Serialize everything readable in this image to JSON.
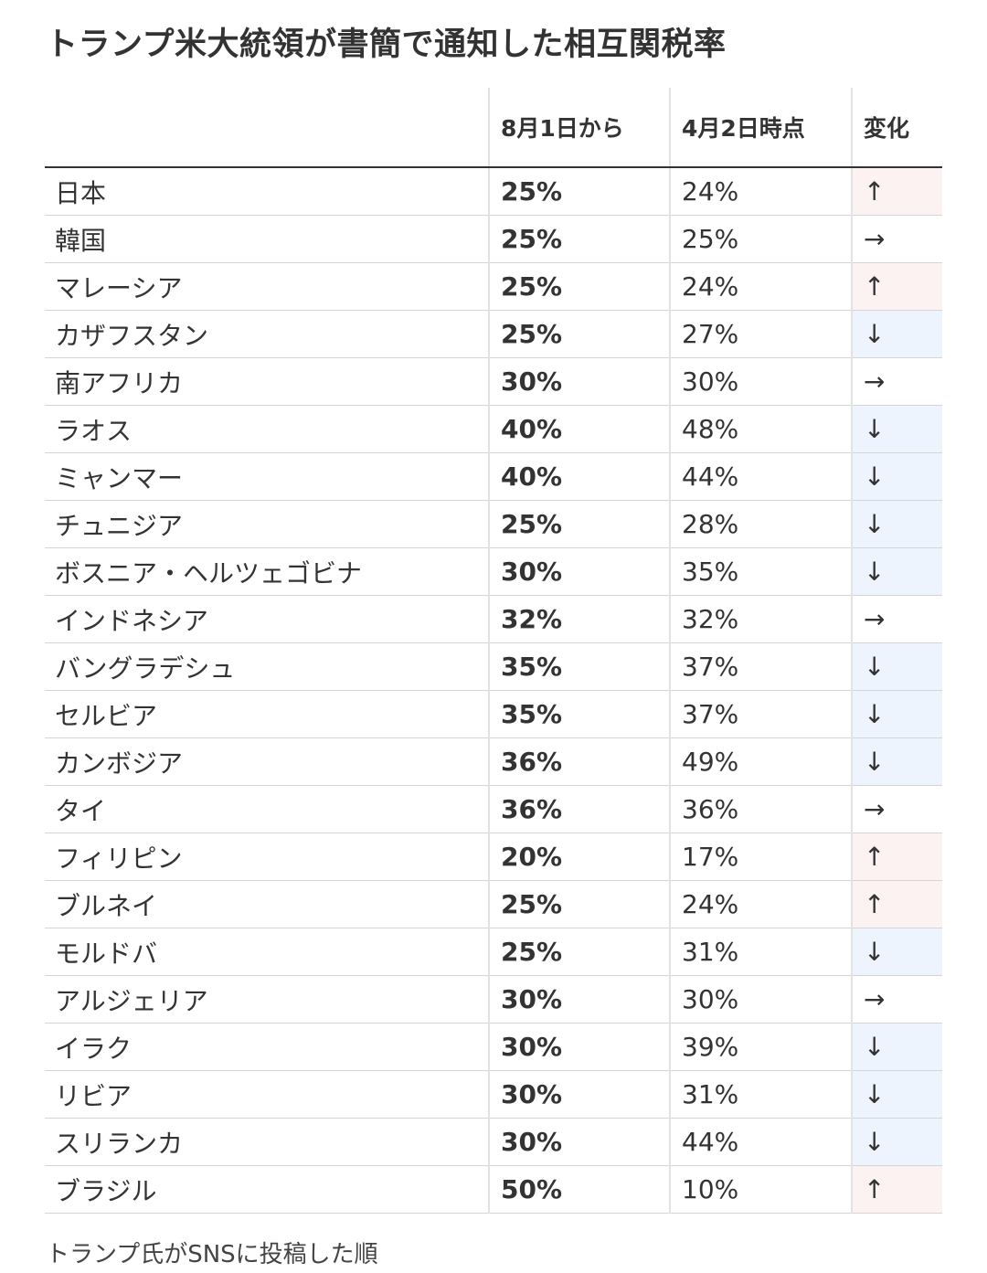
{
  "title": "トランプ米大統領が書簡で通知した相互関税率",
  "note": "トランプ氏がSNSに投稿した順",
  "chart_data": {
    "type": "table",
    "title": "トランプ米大統領が書簡で通知した相互関税率",
    "columns": [
      "",
      "8月1日から",
      "4月2日時点",
      "変化"
    ],
    "rows": [
      {
        "country": "日本",
        "new": "25%",
        "old": "24%",
        "change": "↑",
        "dir": "up"
      },
      {
        "country": "韓国",
        "new": "25%",
        "old": "25%",
        "change": "→",
        "dir": "same"
      },
      {
        "country": "マレーシア",
        "new": "25%",
        "old": "24%",
        "change": "↑",
        "dir": "up"
      },
      {
        "country": "カザフスタン",
        "new": "25%",
        "old": "27%",
        "change": "↓",
        "dir": "down"
      },
      {
        "country": "南アフリカ",
        "new": "30%",
        "old": "30%",
        "change": "→",
        "dir": "same"
      },
      {
        "country": "ラオス",
        "new": "40%",
        "old": "48%",
        "change": "↓",
        "dir": "down"
      },
      {
        "country": "ミャンマー",
        "new": "40%",
        "old": "44%",
        "change": "↓",
        "dir": "down"
      },
      {
        "country": "チュニジア",
        "new": "25%",
        "old": "28%",
        "change": "↓",
        "dir": "down"
      },
      {
        "country": "ボスニア・ヘルツェゴビナ",
        "new": "30%",
        "old": "35%",
        "change": "↓",
        "dir": "down"
      },
      {
        "country": "インドネシア",
        "new": "32%",
        "old": "32%",
        "change": "→",
        "dir": "same"
      },
      {
        "country": "バングラデシュ",
        "new": "35%",
        "old": "37%",
        "change": "↓",
        "dir": "down"
      },
      {
        "country": "セルビア",
        "new": "35%",
        "old": "37%",
        "change": "↓",
        "dir": "down"
      },
      {
        "country": "カンボジア",
        "new": "36%",
        "old": "49%",
        "change": "↓",
        "dir": "down"
      },
      {
        "country": "タイ",
        "new": "36%",
        "old": "36%",
        "change": "→",
        "dir": "same"
      },
      {
        "country": "フィリピン",
        "new": "20%",
        "old": "17%",
        "change": "↑",
        "dir": "up"
      },
      {
        "country": "ブルネイ",
        "new": "25%",
        "old": "24%",
        "change": "↑",
        "dir": "up"
      },
      {
        "country": "モルドバ",
        "new": "25%",
        "old": "31%",
        "change": "↓",
        "dir": "down"
      },
      {
        "country": "アルジェリア",
        "new": "30%",
        "old": "30%",
        "change": "→",
        "dir": "same"
      },
      {
        "country": "イラク",
        "new": "30%",
        "old": "39%",
        "change": "↓",
        "dir": "down"
      },
      {
        "country": "リビア",
        "new": "30%",
        "old": "31%",
        "change": "↓",
        "dir": "down"
      },
      {
        "country": "スリランカ",
        "new": "30%",
        "old": "44%",
        "change": "↓",
        "dir": "down"
      },
      {
        "country": "ブラジル",
        "new": "50%",
        "old": "10%",
        "change": "↑",
        "dir": "up"
      }
    ],
    "colors": {
      "up": "#fdf2f2",
      "down": "#eef4fd",
      "same": "#ffffff",
      "header_rule": "#333333",
      "row_rule": "#d4d4d4"
    }
  }
}
